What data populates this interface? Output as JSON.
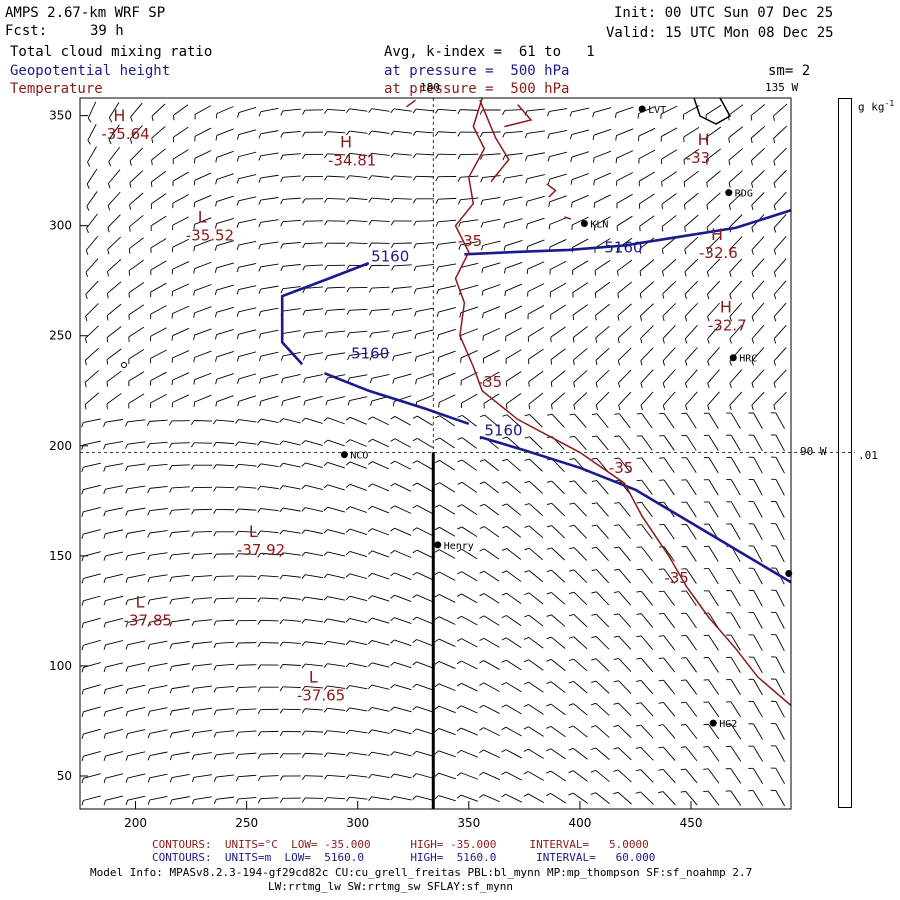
{
  "header": {
    "model": "AMPS 2.67-km WRF SP",
    "init": "Init: 00 UTC Sun 07 Dec 25",
    "fcst_label": "Fcst:",
    "fcst_value": "39 h",
    "valid": "Valid: 15 UTC Mon 08 Dec 25"
  },
  "fields": [
    {
      "name": "Total cloud mixing ratio",
      "desc": "Avg, k-index =  61 to   1",
      "color": "#000000"
    },
    {
      "name": "Geopotential height",
      "desc": "at pressure =  500 hPa",
      "color": "#1a1a8c"
    },
    {
      "name": "Temperature",
      "desc": "at pressure =  500 hPa",
      "color": "#8b1a1a"
    }
  ],
  "sm_label": "sm= 2",
  "units_label": "g kg",
  "units_exp": "-1",
  "scale_value": ".01",
  "lon_labels": {
    "top": "180",
    "right_top": "135 W",
    "right_mid": "90 W"
  },
  "axes": {
    "x_ticks": [
      200,
      250,
      300,
      350,
      400,
      450
    ],
    "y_ticks": [
      50,
      100,
      150,
      200,
      250,
      300,
      350
    ],
    "x_range": [
      175,
      495
    ],
    "y_range": [
      35,
      358
    ]
  },
  "stations": [
    {
      "name": "LVT",
      "x": 428,
      "y": 353
    },
    {
      "name": "RDG",
      "x": 467,
      "y": 315
    },
    {
      "name": "KLN",
      "x": 402,
      "y": 301
    },
    {
      "name": "HRC",
      "x": 469,
      "y": 240
    },
    {
      "name": "NCO",
      "x": 294,
      "y": 196
    },
    {
      "name": "Henry",
      "x": 336,
      "y": 155
    },
    {
      "name": "HG2",
      "x": 460,
      "y": 74
    },
    {
      "name": "",
      "x": 494,
      "y": 142
    }
  ],
  "height_contours": {
    "label": "5160",
    "labels_pos": [
      [
        306,
        286
      ],
      [
        411,
        290
      ],
      [
        297,
        242
      ],
      [
        357,
        207
      ]
    ],
    "lines": [
      [
        [
          348,
          287
        ],
        [
          370,
          288
        ],
        [
          395,
          289
        ],
        [
          420,
          291
        ],
        [
          445,
          295
        ],
        [
          470,
          299
        ],
        [
          495,
          307
        ]
      ],
      [
        [
          305,
          283
        ],
        [
          287,
          276
        ],
        [
          266,
          268
        ],
        [
          266,
          247
        ],
        [
          275,
          237
        ]
      ],
      [
        [
          285,
          233
        ],
        [
          305,
          225
        ],
        [
          330,
          217
        ],
        [
          350,
          210
        ]
      ],
      [
        [
          355,
          204
        ],
        [
          375,
          198
        ],
        [
          400,
          190
        ],
        [
          425,
          180
        ],
        [
          450,
          165
        ],
        [
          475,
          150
        ],
        [
          495,
          138
        ]
      ]
    ]
  },
  "temp_contours": {
    "label": "-35",
    "labels_pos": [
      [
        345,
        293
      ],
      [
        354,
        229
      ],
      [
        413,
        190
      ],
      [
        438,
        140
      ]
    ],
    "lines": [
      [
        [
          356,
          358
        ],
        [
          352,
          345
        ],
        [
          357,
          335
        ],
        [
          350,
          322
        ],
        [
          352,
          310
        ],
        [
          344,
          300
        ],
        [
          350,
          288
        ],
        [
          344,
          276
        ],
        [
          348,
          265
        ],
        [
          346,
          250
        ],
        [
          352,
          236
        ],
        [
          356,
          225
        ],
        [
          372,
          212
        ],
        [
          400,
          197
        ],
        [
          420,
          183
        ],
        [
          428,
          168
        ],
        [
          440,
          150
        ],
        [
          448,
          136
        ],
        [
          458,
          122
        ],
        [
          470,
          108
        ],
        [
          480,
          95
        ],
        [
          495,
          82
        ]
      ],
      [
        [
          355,
          357
        ],
        [
          362,
          340
        ],
        [
          368,
          330
        ],
        [
          360,
          320
        ]
      ],
      [
        [
          372,
          355
        ],
        [
          378,
          348
        ],
        [
          366,
          345
        ]
      ],
      [
        [
          385,
          319
        ],
        [
          389,
          316
        ],
        [
          386,
          313
        ]
      ],
      [
        [
          393,
          304
        ],
        [
          396,
          303
        ]
      ],
      [
        [
          322,
          354
        ],
        [
          326,
          357
        ]
      ]
    ]
  },
  "extrema": [
    {
      "type": "H",
      "value": "-35.64",
      "x": 190,
      "y": 343,
      "color": "#8b1a1a"
    },
    {
      "type": "H",
      "value": "-34.81",
      "x": 292,
      "y": 331,
      "color": "#8b1a1a"
    },
    {
      "type": "H",
      "value": "-33",
      "x": 453,
      "y": 332,
      "color": "#8b1a1a"
    },
    {
      "type": "L",
      "value": "-35.52",
      "x": 228,
      "y": 297,
      "color": "#8b1a1a"
    },
    {
      "type": "H",
      "value": "-32.6",
      "x": 459,
      "y": 289,
      "color": "#8b1a1a"
    },
    {
      "type": "H",
      "value": "-32.7",
      "x": 463,
      "y": 256,
      "color": "#8b1a1a"
    },
    {
      "type": "L",
      "value": "-37.92",
      "x": 251,
      "y": 154,
      "color": "#8b1a1a"
    },
    {
      "type": "L",
      "value": "-37.85",
      "x": 200,
      "y": 122,
      "color": "#8b1a1a"
    },
    {
      "type": "L",
      "value": "-37.65",
      "x": 278,
      "y": 88,
      "color": "#8b1a1a"
    }
  ],
  "legend": {
    "temp": {
      "contours": "CONTOURS:",
      "units": "UNITS=°C",
      "low": "LOW= -35.000",
      "high": "HIGH= -35.000",
      "interval": "INTERVAL=   5.0000"
    },
    "height": {
      "contours": "CONTOURS:",
      "units": "UNITS=m",
      "low": "LOW=  5160.0",
      "high": "HIGH=  5160.0",
      "interval": "INTERVAL=   60.000"
    }
  },
  "model_info": {
    "line1": "Model Info: MPASv8.2.3-194-gf29cd82c CU:cu_grell_freitas PBL:bl_mynn MP:mp_thompson SF:sf_noahmp 2.7",
    "line2": "LW:rrtmg_lw SW:rrtmg_sw SFLAY:sf_mynn"
  }
}
